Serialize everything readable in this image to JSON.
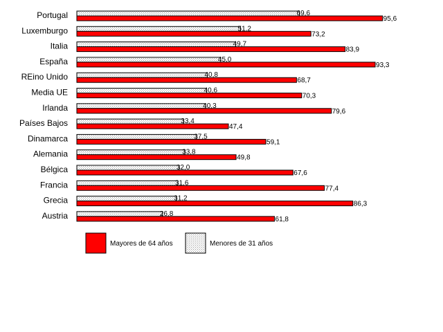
{
  "chart_data": {
    "type": "bar",
    "orientation": "horizontal",
    "categories": [
      "Portugal",
      "Luxemburgo",
      "Italia",
      "España",
      "REino Unido",
      "Media UE",
      "Irlanda",
      "Países Bajos",
      "Dinamarca",
      "Alemania",
      "Bélgica",
      "Francia",
      "Grecia",
      "Austria"
    ],
    "series": [
      {
        "name": "Menores de 31 años",
        "color": "#ffffff",
        "pattern": "dotted",
        "values": [
          69.6,
          51.2,
          49.7,
          45.0,
          40.8,
          40.6,
          40.3,
          33.4,
          37.5,
          33.8,
          32.0,
          31.6,
          31.2,
          26.8
        ],
        "labels": [
          "69,6",
          "51,2",
          "49,7",
          "45,0",
          "40,8",
          "40,6",
          "40,3",
          "33,4",
          "37,5",
          "33,8",
          "32,0",
          "31,6",
          "31,2",
          "26,8"
        ]
      },
      {
        "name": "Mayores de 64 años",
        "color": "#ff0000",
        "values": [
          95.6,
          73.2,
          83.9,
          93.3,
          68.7,
          70.3,
          79.6,
          47.4,
          59.1,
          49.8,
          67.6,
          77.4,
          86.3,
          61.8
        ],
        "labels": [
          "95,6",
          "73,2",
          "83,9",
          "93,3",
          "68,7",
          "70,3",
          "79,6",
          "47,4",
          "59,1",
          "49,8",
          "67,6",
          "77,4",
          "86,3",
          "61,8"
        ]
      }
    ],
    "title": "",
    "xlabel": "",
    "ylabel": "",
    "xlim": [
      0,
      100
    ],
    "grid": false,
    "legend": [
      "Mayores de 64 años",
      "Menores de 31 años"
    ],
    "legend_position": "bottom"
  }
}
